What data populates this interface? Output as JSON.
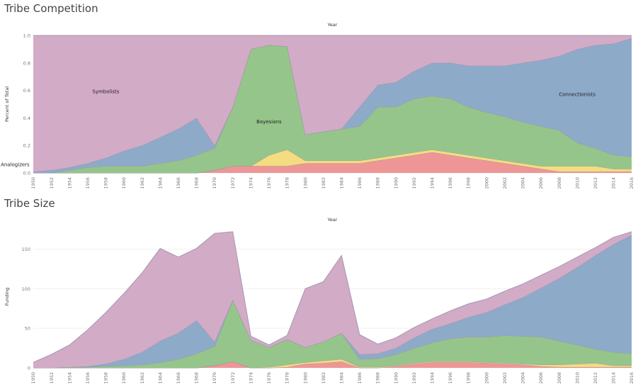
{
  "colors": {
    "Analogizers": "#ee9696",
    "Evolutionaries": "#f4dc80",
    "Bayesians": "#95c58a",
    "Connectionists": "#8eaac9",
    "Symbolists": "#d2abc7",
    "line": "#9a8fa4"
  },
  "chart_data": [
    {
      "type": "area",
      "title": "Tribe Competition",
      "xlabel": "Year",
      "ylabel": "Percent of Total",
      "stacked": true,
      "ylim": [
        0,
        1
      ],
      "yticks": [
        0.0,
        0.2,
        0.4,
        0.6,
        0.8,
        1.0
      ],
      "x": [
        1950,
        1952,
        1954,
        1956,
        1958,
        1960,
        1962,
        1964,
        1966,
        1968,
        1970,
        1972,
        1974,
        1976,
        1978,
        1980,
        1982,
        1984,
        1986,
        1988,
        1990,
        1992,
        1994,
        1996,
        1998,
        2000,
        2002,
        2004,
        2006,
        2008,
        2010,
        2012,
        2014,
        2016
      ],
      "series": [
        {
          "name": "Analogizers",
          "values": [
            0,
            0,
            0,
            0,
            0,
            0,
            0,
            0,
            0,
            0,
            0.02,
            0.05,
            0.05,
            0.05,
            0.05,
            0.07,
            0.07,
            0.07,
            0.07,
            0.09,
            0.11,
            0.13,
            0.15,
            0.13,
            0.11,
            0.09,
            0.07,
            0.05,
            0.03,
            0.01,
            0.01,
            0.01,
            0.01,
            0.01
          ]
        },
        {
          "name": "",
          "values": [
            0,
            0,
            0,
            0,
            0,
            0,
            0,
            0,
            0,
            0,
            0,
            0,
            0,
            0.08,
            0.12,
            0.02,
            0.02,
            0.02,
            0.02,
            0.02,
            0.02,
            0.02,
            0.02,
            0.02,
            0.02,
            0.02,
            0.02,
            0.02,
            0.02,
            0.04,
            0.04,
            0.04,
            0.02,
            0.02
          ]
        },
        {
          "name": "Bayesians",
          "values": [
            0,
            0,
            0.02,
            0.04,
            0.05,
            0.05,
            0.05,
            0.07,
            0.09,
            0.13,
            0.16,
            0.43,
            0.85,
            0.8,
            0.75,
            0.19,
            0.21,
            0.23,
            0.25,
            0.37,
            0.35,
            0.39,
            0.39,
            0.39,
            0.35,
            0.33,
            0.32,
            0.3,
            0.29,
            0.26,
            0.17,
            0.13,
            0.1,
            0.09
          ]
        },
        {
          "name": "Connectionists",
          "values": [
            0.01,
            0.02,
            0.02,
            0.03,
            0.06,
            0.11,
            0.15,
            0.19,
            0.23,
            0.27,
            0.02,
            0,
            0,
            0,
            0,
            0,
            0,
            0,
            0.14,
            0.16,
            0.18,
            0.2,
            0.24,
            0.26,
            0.3,
            0.34,
            0.37,
            0.43,
            0.48,
            0.54,
            0.68,
            0.75,
            0.81,
            0.86
          ]
        },
        {
          "name": "Symbolists",
          "values": [
            0.99,
            0.98,
            0.96,
            0.93,
            0.89,
            0.84,
            0.8,
            0.74,
            0.68,
            0.6,
            0.8,
            0.52,
            0.1,
            0.07,
            0.08,
            0.72,
            0.7,
            0.68,
            0.52,
            0.36,
            0.34,
            0.26,
            0.2,
            0.2,
            0.22,
            0.22,
            0.22,
            0.2,
            0.18,
            0.15,
            0.1,
            0.07,
            0.06,
            0.02
          ]
        }
      ],
      "annotations": [
        {
          "text": "Symbolists",
          "x": 1958,
          "y": 0.58
        },
        {
          "text": "Bayesians",
          "x": 1976,
          "y": 0.36
        },
        {
          "text": "Connectionists",
          "x": 2010,
          "y": 0.56
        },
        {
          "text": "Analogizers",
          "x": 1993,
          "y": 0.05
        }
      ]
    },
    {
      "type": "area",
      "title": "Tribe Size",
      "xlabel": "Year",
      "ylabel": "Funding",
      "stacked": true,
      "ylim": [
        0,
        180
      ],
      "yticks": [
        0,
        50,
        100,
        150
      ],
      "x": [
        1950,
        1952,
        1954,
        1956,
        1958,
        1960,
        1962,
        1964,
        1966,
        1968,
        1970,
        1972,
        1974,
        1976,
        1978,
        1980,
        1982,
        1984,
        1986,
        1988,
        1990,
        1992,
        1994,
        1996,
        1998,
        2000,
        2002,
        2004,
        2006,
        2008,
        2010,
        2012,
        2014,
        2016
      ],
      "series": [
        {
          "name": "Analogizers",
          "values": [
            0,
            0,
            0,
            0,
            0,
            0,
            0,
            0,
            0,
            0,
            3,
            8,
            0,
            0,
            1,
            5,
            6,
            8,
            0,
            0,
            2,
            5,
            7,
            7,
            7,
            6,
            5,
            4,
            2,
            1,
            1,
            1,
            1,
            1
          ]
        },
        {
          "name": "",
          "values": [
            0,
            0,
            0,
            0,
            0,
            0,
            0,
            0,
            0,
            0,
            0,
            0,
            0,
            1,
            3,
            2,
            3,
            3,
            1,
            1,
            1,
            1,
            1,
            1,
            1,
            1,
            1,
            1,
            2,
            3,
            4,
            5,
            2,
            2
          ]
        },
        {
          "name": "Bayesians",
          "values": [
            0,
            0,
            1,
            1,
            2,
            3,
            4,
            7,
            11,
            18,
            24,
            78,
            35,
            25,
            32,
            19,
            24,
            33,
            10,
            11,
            14,
            19,
            24,
            29,
            31,
            32,
            35,
            35,
            35,
            30,
            24,
            18,
            17,
            15
          ]
        },
        {
          "name": "Connectionists",
          "values": [
            0,
            0,
            0,
            1,
            3,
            8,
            16,
            27,
            33,
            42,
            6,
            0,
            0,
            0,
            0,
            0,
            0,
            0,
            6,
            6,
            8,
            13,
            17,
            19,
            25,
            31,
            39,
            49,
            62,
            79,
            98,
            118,
            136,
            150
          ]
        },
        {
          "name": "Symbolists",
          "values": [
            7,
            17,
            28,
            46,
            65,
            83,
            100,
            117,
            96,
            91,
            137,
            86,
            5,
            3,
            5,
            74,
            76,
            98,
            25,
            12,
            13,
            13,
            13,
            16,
            17,
            17,
            17,
            17,
            16,
            15,
            13,
            10,
            9,
            4
          ]
        }
      ]
    }
  ]
}
